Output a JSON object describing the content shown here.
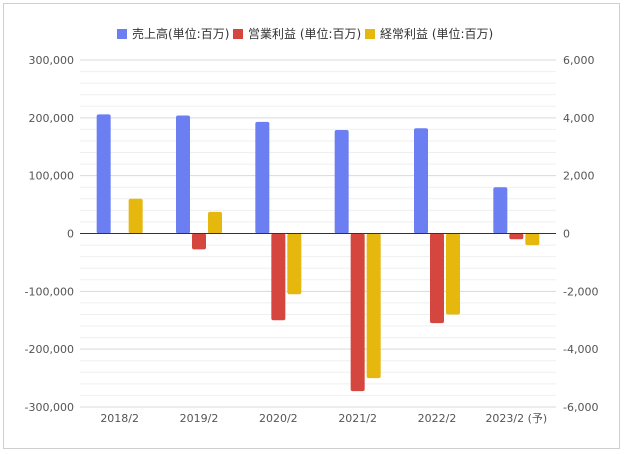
{
  "chart_data": {
    "type": "bar",
    "categories": [
      "2018/2",
      "2019/2",
      "2020/2",
      "2021/2",
      "2022/2",
      "2023/2 (予)"
    ],
    "series": [
      {
        "name": "売上高(単位:百万)",
        "axis": "left",
        "color": "#6b7ff2",
        "values": [
          206000,
          204000,
          193000,
          179000,
          182000,
          80000
        ]
      },
      {
        "name": "営業利益 (単位:百万)",
        "axis": "right",
        "color": "#d5463f",
        "values": [
          0,
          -550,
          -3000,
          -5450,
          -3100,
          -200
        ]
      },
      {
        "name": "経常利益 (単位:百万)",
        "axis": "right",
        "color": "#e6b70d",
        "values": [
          1200,
          750,
          -2100,
          -5000,
          -2800,
          -400
        ]
      }
    ],
    "left_axis": {
      "range": [
        -300000,
        300000
      ],
      "ticks": [
        "300,000",
        "200,000",
        "100,000",
        "0",
        "-100,000",
        "-200,000",
        "-300,000"
      ]
    },
    "right_axis": {
      "range": [
        -6000,
        6000
      ],
      "ticks": [
        "6,000",
        "4,000",
        "2,000",
        "0",
        "-2,000",
        "-4,000",
        "-6,000"
      ]
    },
    "legend_position": "top",
    "grid": true
  }
}
